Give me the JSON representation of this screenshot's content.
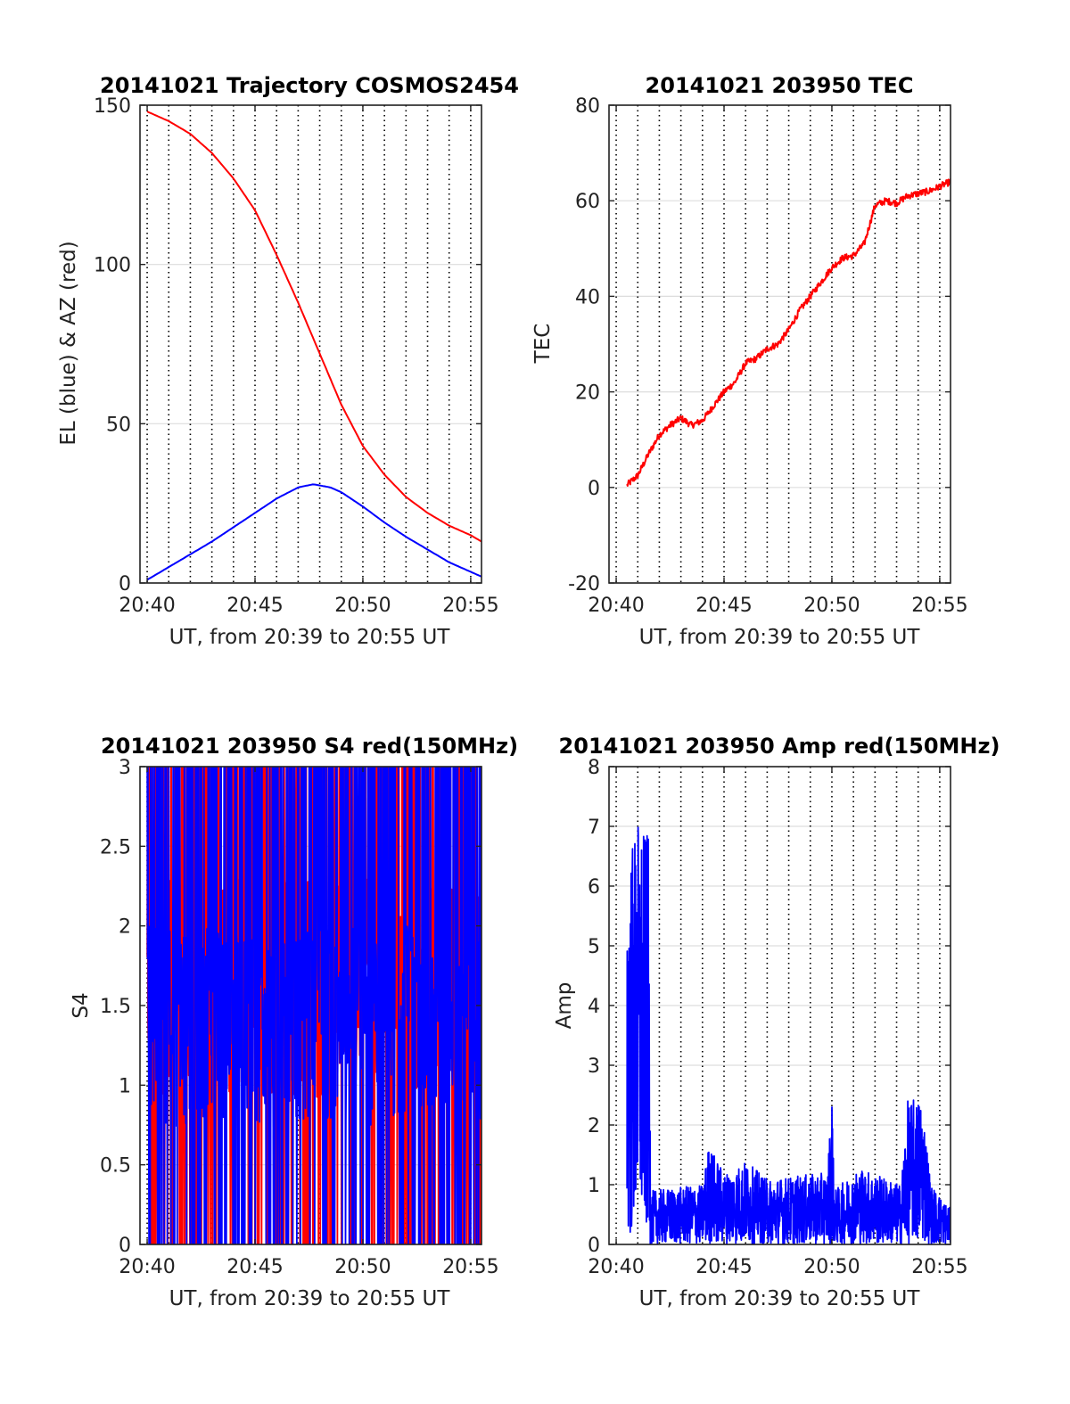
{
  "colors": {
    "red": "#ff0000",
    "blue": "#0000ff",
    "grid": "#dddddd",
    "vline": "#000000"
  },
  "chart_data": [
    {
      "type": "line",
      "title": "20141021 Trajectory COSMOS2454",
      "xlabel": "UT, from 20:39 to 20:55 UT",
      "ylabel": "EL (blue) & AZ (red)",
      "xlim": [
        39.667,
        55.5
      ],
      "ylim": [
        0,
        150
      ],
      "xticks": [
        40,
        45,
        50,
        55
      ],
      "xtick_labels": [
        "20:40",
        "20:45",
        "20:50",
        "20:55"
      ],
      "yticks": [
        0,
        50,
        100,
        150
      ],
      "ytick_labels": [
        "0",
        "50",
        "100",
        "150"
      ],
      "vlines": [
        40,
        41,
        42,
        43,
        44,
        45,
        46,
        47,
        48,
        49,
        50,
        51,
        52,
        53,
        54,
        55
      ],
      "series": [
        {
          "color": "#0000ff",
          "x": [
            40,
            41,
            42,
            43,
            44,
            45,
            46,
            47,
            47.7,
            48.5,
            49,
            50,
            51,
            52,
            53,
            54,
            55,
            55.5
          ],
          "y": [
            1,
            5,
            9,
            13,
            17.5,
            22,
            26.5,
            30,
            31,
            30,
            28.5,
            24,
            19,
            14.5,
            10.5,
            6.5,
            3.5,
            2
          ]
        },
        {
          "color": "#ff0000",
          "x": [
            40,
            41,
            42,
            43,
            44,
            45,
            46,
            47,
            48,
            49,
            50,
            51,
            52,
            53,
            54,
            55,
            55.5
          ],
          "y": [
            148,
            145,
            141,
            135,
            127,
            117,
            103,
            88,
            72,
            56,
            43,
            34,
            27,
            22,
            18,
            15,
            13
          ]
        }
      ]
    },
    {
      "type": "line",
      "title": "20141021 203950 TEC",
      "xlabel": "UT, from 20:39 to 20:55 UT",
      "ylabel": "TEC",
      "xlim": [
        39.667,
        55.5
      ],
      "ylim": [
        -20,
        80
      ],
      "xticks": [
        40,
        45,
        50,
        55
      ],
      "xtick_labels": [
        "20:40",
        "20:45",
        "20:50",
        "20:55"
      ],
      "yticks": [
        -20,
        0,
        20,
        40,
        60,
        80
      ],
      "ytick_labels": [
        "-20",
        "0",
        "20",
        "40",
        "60",
        "80"
      ],
      "vlines": [
        40,
        41,
        42,
        43,
        44,
        45,
        46,
        47,
        48,
        49,
        50,
        51,
        52,
        53,
        54,
        55
      ],
      "series": [
        {
          "color": "#ff0000",
          "x": [
            40.5,
            41,
            41.5,
            42,
            42.5,
            43,
            43.5,
            44,
            44.5,
            45,
            45.5,
            46,
            46.5,
            47,
            47.5,
            48,
            48.5,
            49,
            49.5,
            50,
            50.5,
            51,
            51.5,
            52,
            52.5,
            53,
            53.5,
            54,
            54.5,
            55,
            55.5
          ],
          "y": [
            0.5,
            2.5,
            7,
            11,
            13,
            14.5,
            13,
            14,
            17,
            20,
            22,
            26,
            27,
            29,
            30,
            33,
            37,
            40,
            43,
            46,
            48,
            48.5,
            51,
            59,
            60,
            59.5,
            61,
            61.5,
            62,
            63,
            64
          ]
        }
      ]
    },
    {
      "type": "line",
      "title": "20141021 203950 S4 red(150MHz)",
      "xlabel": "UT, from 20:39 to 20:55 UT",
      "ylabel": "S4",
      "xlim": [
        39.667,
        55.5
      ],
      "ylim": [
        0,
        3
      ],
      "xticks": [
        40,
        45,
        50,
        55
      ],
      "xtick_labels": [
        "20:40",
        "20:45",
        "20:50",
        "20:55"
      ],
      "yticks": [
        0,
        0.5,
        1,
        1.5,
        2,
        2.5,
        3
      ],
      "ytick_labels": [
        "0",
        "0.5",
        "1",
        "1.5",
        "2",
        "2.5",
        "3"
      ],
      "vlines": [
        40,
        41,
        42,
        43,
        44,
        45,
        46,
        47,
        48,
        49,
        50,
        51,
        52,
        53,
        54,
        55
      ],
      "series": [
        {
          "color": "#ff0000",
          "x": [
            40,
            55.5
          ],
          "style": "noise",
          "level": 2.3,
          "spread": 1.0
        },
        {
          "color": "#0000ff",
          "x": [
            40,
            55.5
          ],
          "style": "noise",
          "level": 2.0,
          "spread": 0.9
        }
      ]
    },
    {
      "type": "line",
      "title": "20141021 203950 Amp red(150MHz)",
      "xlabel": "UT, from 20:39 to 20:55 UT",
      "ylabel": "Amp",
      "xlim": [
        39.667,
        55.5
      ],
      "ylim": [
        0,
        8
      ],
      "xticks": [
        40,
        45,
        50,
        55
      ],
      "xtick_labels": [
        "20:40",
        "20:45",
        "20:50",
        "20:55"
      ],
      "yticks": [
        0,
        1,
        2,
        3,
        4,
        5,
        6,
        7,
        8
      ],
      "ytick_labels": [
        "0",
        "1",
        "2",
        "3",
        "4",
        "5",
        "6",
        "7",
        "8"
      ],
      "vlines": [
        40,
        41,
        42,
        43,
        44,
        45,
        46,
        47,
        48,
        49,
        50,
        51,
        52,
        53,
        54,
        55
      ],
      "series": [
        {
          "color": "#0000ff",
          "x": [
            40.5,
            55.5
          ],
          "style": "noise",
          "envelope": [
            [
              40.5,
              6.5
            ],
            [
              41,
              7.2
            ],
            [
              41.5,
              6.8
            ],
            [
              41.6,
              0.9
            ],
            [
              44,
              1.0
            ],
            [
              44.3,
              1.7
            ],
            [
              45,
              1.2
            ],
            [
              46,
              1.4
            ],
            [
              47,
              1.1
            ],
            [
              49.8,
              1.2
            ],
            [
              50,
              2.7
            ],
            [
              50.1,
              0.9
            ],
            [
              51.3,
              1.3
            ],
            [
              53.2,
              1.0
            ],
            [
              53.5,
              2.4
            ],
            [
              54.2,
              2.5
            ],
            [
              54.6,
              1.0
            ],
            [
              55.5,
              0.6
            ]
          ]
        }
      ]
    }
  ]
}
